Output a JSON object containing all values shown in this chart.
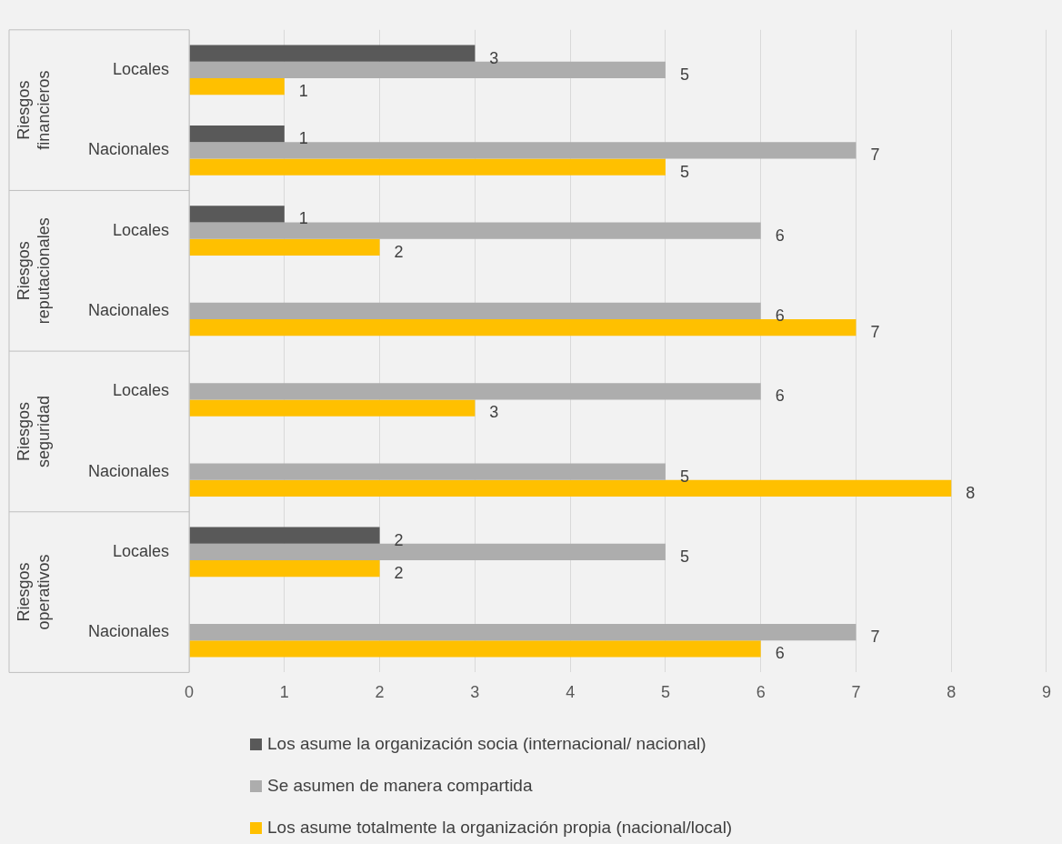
{
  "chart_data": {
    "type": "bar",
    "orientation": "horizontal",
    "categories": [
      "Locales",
      "Nacionales",
      "Locales",
      "Nacionales",
      "Locales",
      "Nacionales",
      "Locales",
      "Nacionales"
    ],
    "annotations": [
      "Riesgos financieros",
      "Riesgos reputacionales",
      "Riesgos seguridad",
      "Riesgos operativos"
    ],
    "series": [
      {
        "name": "Los asume la organización socia (internacional/ nacional)",
        "color": "#595959",
        "values": [
          3,
          1,
          1,
          null,
          null,
          null,
          2,
          null
        ]
      },
      {
        "name": "Se asumen de manera compartida",
        "color": "#adadad",
        "values": [
          5,
          7,
          6,
          6,
          6,
          5,
          5,
          7
        ]
      },
      {
        "name": "Los asume totalmente la organización propia (nacional/local)",
        "color": "#ffc000",
        "values": [
          1,
          5,
          2,
          7,
          3,
          8,
          2,
          6
        ]
      }
    ],
    "xlim": [
      0,
      9
    ],
    "xticks": [
      0,
      1,
      2,
      3,
      4,
      5,
      6,
      7,
      8,
      9
    ],
    "grid": "x",
    "legend": "bottom",
    "data_labels": true
  }
}
